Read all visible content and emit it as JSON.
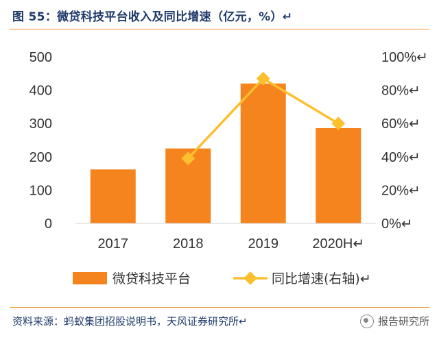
{
  "figure": {
    "title": "图 55：微贷科技平台收入及同比增速（亿元，%）↵",
    "source": "资料来源：蚂蚁集团招股说明书，天风证券研究所↵",
    "watermark": "报告研究所"
  },
  "chart_data": {
    "type": "bar",
    "categories": [
      "2017",
      "2018",
      "2019",
      "2020H↵"
    ],
    "series": [
      {
        "name": "微贷科技平台",
        "type": "bar",
        "axis": "left",
        "values": [
          162,
          225,
          420,
          286
        ],
        "color": "#f5841f"
      },
      {
        "name": "同比增速(右轴)↵",
        "type": "line",
        "axis": "right",
        "values": [
          null,
          39,
          87,
          60
        ],
        "color": "#fdbf2d"
      }
    ],
    "ylim_left": [
      0,
      500
    ],
    "yticks_left": [
      "500",
      "400",
      "300",
      "200",
      "100",
      "0"
    ],
    "ylim_right": [
      0,
      100
    ],
    "yticks_right": [
      "100%↵",
      "80%↵",
      "60%↵",
      "40%↵",
      "20%↵",
      "0%↵"
    ],
    "grid": false,
    "legend": "bottom"
  }
}
